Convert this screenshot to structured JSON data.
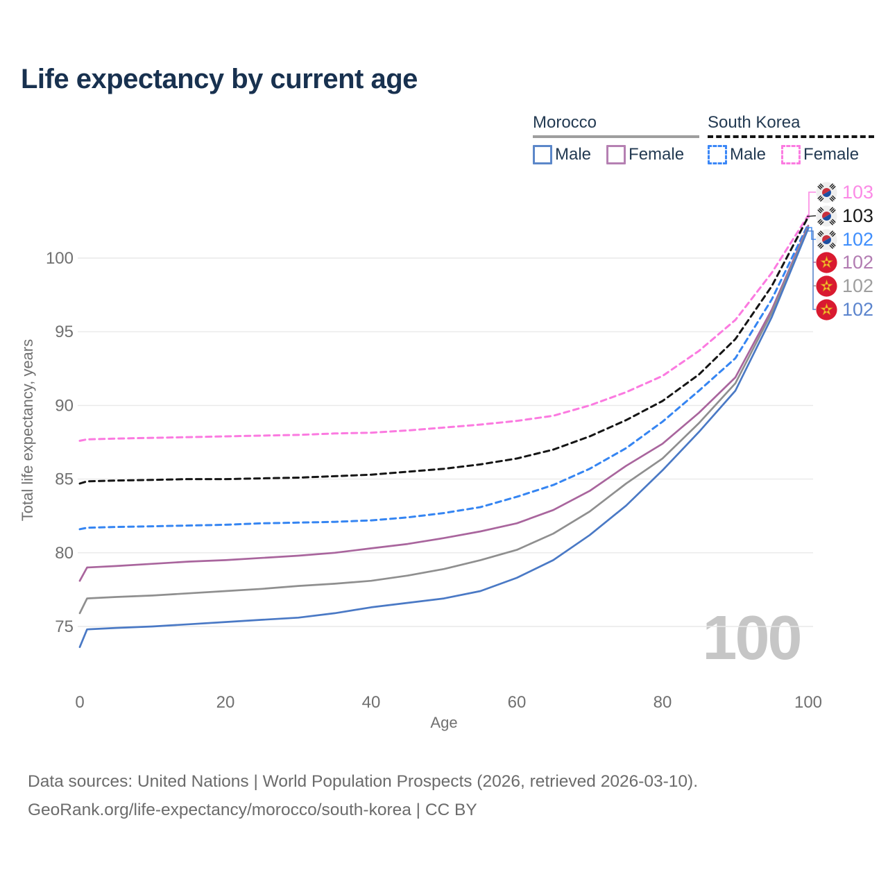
{
  "header": {
    "title": "Life expectancy by current age"
  },
  "legend": {
    "groups": [
      {
        "label": "Morocco",
        "line_style": "solid",
        "underline_color": "#9e9e9e",
        "items": [
          {
            "label": "Male",
            "color": "#5b87c9",
            "style": "solid"
          },
          {
            "label": "Female",
            "color": "#b580b2",
            "style": "solid"
          }
        ]
      },
      {
        "label": "South Korea",
        "line_style": "dashed",
        "underline_color": "#141414",
        "items": [
          {
            "label": "Male",
            "color": "#3b87f7",
            "style": "dashed"
          },
          {
            "label": "Female",
            "color": "#fb7be1",
            "style": "dashed"
          }
        ]
      }
    ]
  },
  "chart_data": {
    "type": "line",
    "title": "Life expectancy by current age",
    "xlabel": "Age",
    "ylabel": "Total life expectancy, years",
    "x_ticks": [
      0,
      20,
      40,
      60,
      80,
      100
    ],
    "y_ticks": [
      75,
      80,
      85,
      90,
      95,
      100
    ],
    "xlim": [
      0,
      100
    ],
    "ylim": [
      73,
      103.5
    ],
    "grid": "horizontal",
    "legend_position": "top-right",
    "age_counter_watermark": "100",
    "series": [
      {
        "id": "kr_female",
        "name": "South Korea Female",
        "country": "South Korea",
        "sex": "Female",
        "color": "#fb7ae0",
        "dash": true,
        "points": [
          [
            0,
            87.6
          ],
          [
            1,
            87.7
          ],
          [
            5,
            87.75
          ],
          [
            10,
            87.8
          ],
          [
            15,
            87.85
          ],
          [
            20,
            87.9
          ],
          [
            25,
            87.95
          ],
          [
            30,
            88.0
          ],
          [
            35,
            88.1
          ],
          [
            40,
            88.15
          ],
          [
            45,
            88.3
          ],
          [
            50,
            88.5
          ],
          [
            55,
            88.7
          ],
          [
            60,
            88.95
          ],
          [
            65,
            89.3
          ],
          [
            70,
            90.0
          ],
          [
            75,
            90.9
          ],
          [
            80,
            92.0
          ],
          [
            85,
            93.7
          ],
          [
            90,
            95.8
          ],
          [
            95,
            99.0
          ],
          [
            100,
            102.9
          ]
        ]
      },
      {
        "id": "kr_all",
        "name": "South Korea Both sexes",
        "country": "South Korea",
        "sex": "All",
        "color": "#151515",
        "dash": true,
        "points": [
          [
            0,
            84.7
          ],
          [
            1,
            84.85
          ],
          [
            5,
            84.9
          ],
          [
            10,
            84.95
          ],
          [
            15,
            85.0
          ],
          [
            20,
            85.0
          ],
          [
            25,
            85.05
          ],
          [
            30,
            85.1
          ],
          [
            35,
            85.2
          ],
          [
            40,
            85.3
          ],
          [
            45,
            85.5
          ],
          [
            50,
            85.7
          ],
          [
            55,
            86.0
          ],
          [
            60,
            86.4
          ],
          [
            65,
            87.0
          ],
          [
            70,
            87.9
          ],
          [
            75,
            89.0
          ],
          [
            80,
            90.3
          ],
          [
            85,
            92.1
          ],
          [
            90,
            94.5
          ],
          [
            95,
            98.1
          ],
          [
            100,
            102.8
          ]
        ]
      },
      {
        "id": "kr_male",
        "name": "South Korea Male",
        "country": "South Korea",
        "sex": "Male",
        "color": "#3585f2",
        "dash": true,
        "points": [
          [
            0,
            81.6
          ],
          [
            1,
            81.7
          ],
          [
            5,
            81.75
          ],
          [
            10,
            81.8
          ],
          [
            15,
            81.85
          ],
          [
            20,
            81.9
          ],
          [
            25,
            82.0
          ],
          [
            30,
            82.05
          ],
          [
            35,
            82.1
          ],
          [
            40,
            82.2
          ],
          [
            45,
            82.4
          ],
          [
            50,
            82.7
          ],
          [
            55,
            83.1
          ],
          [
            60,
            83.8
          ],
          [
            65,
            84.6
          ],
          [
            70,
            85.7
          ],
          [
            75,
            87.1
          ],
          [
            80,
            88.9
          ],
          [
            85,
            91.0
          ],
          [
            90,
            93.2
          ],
          [
            95,
            97.2
          ],
          [
            100,
            102.3
          ]
        ]
      },
      {
        "id": "ma_female",
        "name": "Morocco Female",
        "country": "Morocco",
        "sex": "Female",
        "color": "#a9659d",
        "dash": false,
        "points": [
          [
            0,
            78.1
          ],
          [
            1,
            79.0
          ],
          [
            5,
            79.1
          ],
          [
            10,
            79.25
          ],
          [
            15,
            79.4
          ],
          [
            20,
            79.5
          ],
          [
            25,
            79.65
          ],
          [
            30,
            79.8
          ],
          [
            35,
            80.0
          ],
          [
            40,
            80.3
          ],
          [
            45,
            80.6
          ],
          [
            50,
            81.0
          ],
          [
            55,
            81.45
          ],
          [
            60,
            82.0
          ],
          [
            65,
            82.9
          ],
          [
            70,
            84.2
          ],
          [
            75,
            85.9
          ],
          [
            80,
            87.4
          ],
          [
            85,
            89.5
          ],
          [
            90,
            91.9
          ],
          [
            95,
            96.5
          ],
          [
            100,
            102.2
          ]
        ]
      },
      {
        "id": "ma_all",
        "name": "Morocco Both sexes",
        "country": "Morocco",
        "sex": "All",
        "color": "#8f8f8f",
        "dash": false,
        "points": [
          [
            0,
            75.9
          ],
          [
            1,
            76.9
          ],
          [
            5,
            77.0
          ],
          [
            10,
            77.1
          ],
          [
            15,
            77.25
          ],
          [
            20,
            77.4
          ],
          [
            25,
            77.55
          ],
          [
            30,
            77.75
          ],
          [
            35,
            77.9
          ],
          [
            40,
            78.1
          ],
          [
            45,
            78.45
          ],
          [
            50,
            78.9
          ],
          [
            55,
            79.5
          ],
          [
            60,
            80.2
          ],
          [
            65,
            81.3
          ],
          [
            70,
            82.8
          ],
          [
            75,
            84.7
          ],
          [
            80,
            86.4
          ],
          [
            85,
            88.8
          ],
          [
            90,
            91.5
          ],
          [
            95,
            96.3
          ],
          [
            100,
            102.1
          ]
        ]
      },
      {
        "id": "ma_male",
        "name": "Morocco Male",
        "country": "Morocco",
        "sex": "Male",
        "color": "#4a79c5",
        "dash": false,
        "points": [
          [
            0,
            73.6
          ],
          [
            1,
            74.8
          ],
          [
            5,
            74.9
          ],
          [
            10,
            75.0
          ],
          [
            15,
            75.15
          ],
          [
            20,
            75.3
          ],
          [
            25,
            75.45
          ],
          [
            30,
            75.6
          ],
          [
            35,
            75.9
          ],
          [
            40,
            76.3
          ],
          [
            45,
            76.6
          ],
          [
            50,
            76.9
          ],
          [
            55,
            77.4
          ],
          [
            60,
            78.3
          ],
          [
            65,
            79.5
          ],
          [
            70,
            81.2
          ],
          [
            75,
            83.2
          ],
          [
            80,
            85.6
          ],
          [
            85,
            88.2
          ],
          [
            90,
            91.0
          ],
          [
            95,
            96.0
          ],
          [
            100,
            102.0
          ]
        ]
      }
    ],
    "end_labels": [
      {
        "flag": "south-korea",
        "series": "kr_female",
        "value": "103",
        "color": "#fb8ae6"
      },
      {
        "flag": "south-korea",
        "series": "kr_all",
        "value": "103",
        "color": "#1a1a1a"
      },
      {
        "flag": "south-korea",
        "series": "kr_male",
        "value": "102",
        "color": "#3f8efc"
      },
      {
        "flag": "morocco",
        "series": "ma_female",
        "value": "102",
        "color": "#b27cb2"
      },
      {
        "flag": "morocco",
        "series": "ma_all",
        "value": "102",
        "color": "#9e9e9e"
      },
      {
        "flag": "morocco",
        "series": "ma_male",
        "value": "102",
        "color": "#5b84cd"
      }
    ]
  },
  "footer": {
    "line1": "Data sources: United Nations | World Population Prospects (2026, retrieved 2026-03-10).",
    "line2": "GeoRank.org/life-expectancy/morocco/south-korea | CC BY"
  }
}
